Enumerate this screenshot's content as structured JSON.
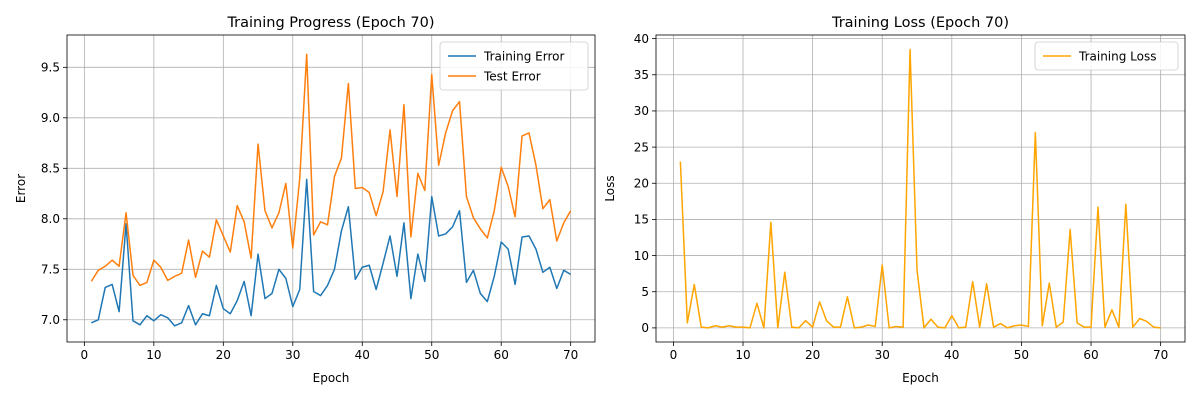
{
  "chart_data": [
    {
      "type": "line",
      "title": "Training Progress (Epoch 70)",
      "xlabel": "Epoch",
      "ylabel": "Error",
      "xlim": [
        -2.5,
        73.5
      ],
      "ylim": [
        6.78,
        9.82
      ],
      "xticks": [
        0,
        10,
        20,
        30,
        40,
        50,
        60,
        70
      ],
      "yticks": [
        7.0,
        7.5,
        8.0,
        8.5,
        9.0,
        9.5
      ],
      "ytick_labels": [
        "7.0",
        "7.5",
        "8.0",
        "8.5",
        "9.0",
        "9.5"
      ],
      "grid": true,
      "legend": "top-right",
      "x": [
        1,
        2,
        3,
        4,
        5,
        6,
        7,
        8,
        9,
        10,
        11,
        12,
        13,
        14,
        15,
        16,
        17,
        18,
        19,
        20,
        21,
        22,
        23,
        24,
        25,
        26,
        27,
        28,
        29,
        30,
        31,
        32,
        33,
        34,
        35,
        36,
        37,
        38,
        39,
        40,
        41,
        42,
        43,
        44,
        45,
        46,
        47,
        48,
        49,
        50,
        51,
        52,
        53,
        54,
        55,
        56,
        57,
        58,
        59,
        60,
        61,
        62,
        63,
        64,
        65,
        66,
        67,
        68,
        69,
        70
      ],
      "series": [
        {
          "name": "Training Error",
          "color": "#1f77b4",
          "values": [
            6.97,
            7.0,
            7.32,
            7.35,
            7.08,
            7.95,
            6.99,
            6.95,
            7.04,
            6.99,
            7.05,
            7.02,
            6.94,
            6.97,
            7.14,
            6.95,
            7.06,
            7.04,
            7.34,
            7.11,
            7.06,
            7.19,
            7.38,
            7.04,
            7.65,
            7.21,
            7.26,
            7.5,
            7.41,
            7.13,
            7.3,
            8.39,
            7.28,
            7.24,
            7.34,
            7.5,
            7.88,
            8.12,
            7.4,
            7.52,
            7.54,
            7.3,
            7.56,
            7.83,
            7.43,
            7.96,
            7.21,
            7.65,
            7.38,
            8.22,
            7.83,
            7.85,
            7.92,
            8.08,
            7.37,
            7.49,
            7.26,
            7.18,
            7.43,
            7.77,
            7.7,
            7.35,
            7.82,
            7.83,
            7.7,
            7.47,
            7.52,
            7.31,
            7.49,
            7.45
          ]
        },
        {
          "name": "Test Error",
          "color": "#ff7f0e",
          "values": [
            7.38,
            7.49,
            7.53,
            7.59,
            7.53,
            8.06,
            7.44,
            7.34,
            7.37,
            7.59,
            7.52,
            7.39,
            7.43,
            7.46,
            7.79,
            7.42,
            7.68,
            7.62,
            7.99,
            7.83,
            7.67,
            8.13,
            7.97,
            7.61,
            8.74,
            8.08,
            7.91,
            8.06,
            8.35,
            7.71,
            8.4,
            9.63,
            7.84,
            7.97,
            7.94,
            8.42,
            8.6,
            9.34,
            8.3,
            8.31,
            8.26,
            8.03,
            8.27,
            8.88,
            8.22,
            9.13,
            7.82,
            8.45,
            8.28,
            9.43,
            8.53,
            8.85,
            9.07,
            9.16,
            8.22,
            8.01,
            7.9,
            7.81,
            8.08,
            8.51,
            8.32,
            8.02,
            8.82,
            8.85,
            8.53,
            8.1,
            8.19,
            7.78,
            7.96,
            8.08
          ]
        }
      ]
    },
    {
      "type": "line",
      "title": "Training Loss (Epoch 70)",
      "xlabel": "Epoch",
      "ylabel": "Loss",
      "xlim": [
        -2.5,
        73.5
      ],
      "ylim": [
        -1.95,
        40.5
      ],
      "xticks": [
        0,
        10,
        20,
        30,
        40,
        50,
        60,
        70
      ],
      "yticks": [
        0,
        5,
        10,
        15,
        20,
        25,
        30,
        35,
        40
      ],
      "ytick_labels": [
        "0",
        "5",
        "10",
        "15",
        "20",
        "25",
        "30",
        "35",
        "40"
      ],
      "grid": true,
      "legend": "top-right",
      "x": [
        1,
        2,
        3,
        4,
        5,
        6,
        7,
        8,
        9,
        10,
        11,
        12,
        13,
        14,
        15,
        16,
        17,
        18,
        19,
        20,
        21,
        22,
        23,
        24,
        25,
        26,
        27,
        28,
        29,
        30,
        31,
        32,
        33,
        34,
        35,
        36,
        37,
        38,
        39,
        40,
        41,
        42,
        43,
        44,
        45,
        46,
        47,
        48,
        49,
        50,
        51,
        52,
        53,
        54,
        55,
        56,
        57,
        58,
        59,
        60,
        61,
        62,
        63,
        64,
        65,
        66,
        67,
        68,
        69,
        70
      ],
      "series": [
        {
          "name": "Training Loss",
          "color": "#ffa500",
          "values": [
            23.0,
            0.7,
            6.0,
            0.1,
            0.0,
            0.3,
            0.1,
            0.3,
            0.1,
            0.1,
            0.0,
            3.4,
            0.0,
            14.6,
            0.0,
            7.7,
            0.1,
            0.0,
            1.0,
            0.1,
            3.6,
            1.0,
            0.1,
            0.1,
            4.3,
            0.0,
            0.1,
            0.4,
            0.2,
            8.7,
            0.0,
            0.2,
            0.1,
            38.5,
            8.0,
            0.0,
            1.2,
            0.1,
            0.0,
            1.7,
            0.0,
            0.1,
            6.4,
            0.1,
            6.1,
            0.1,
            0.6,
            0.0,
            0.3,
            0.4,
            0.2,
            27.0,
            0.3,
            6.2,
            0.1,
            0.8,
            13.6,
            0.7,
            0.1,
            0.1,
            16.7,
            0.1,
            2.5,
            0.1,
            17.1,
            0.1,
            1.3,
            0.9,
            0.1,
            0.0
          ]
        }
      ]
    }
  ]
}
